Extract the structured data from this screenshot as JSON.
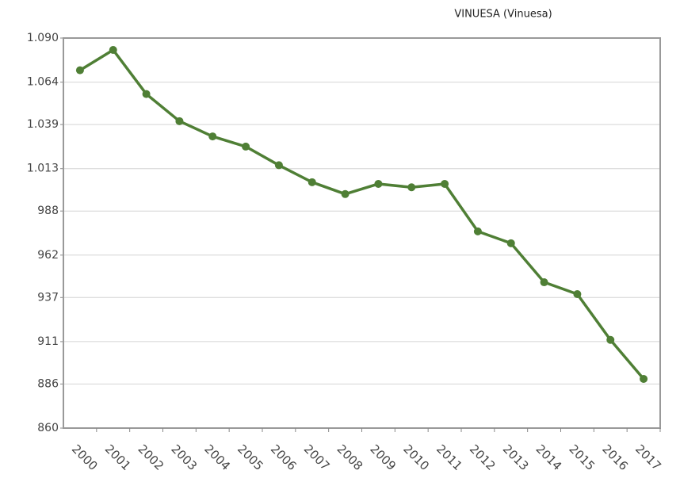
{
  "chart_data": {
    "type": "line",
    "title": "VINUESA (Vinuesa)",
    "categories": [
      "2000",
      "2001",
      "2002",
      "2003",
      "2004",
      "2005",
      "2006",
      "2007",
      "2008",
      "2009",
      "2010",
      "2011",
      "2012",
      "2013",
      "2014",
      "2015",
      "2016",
      "2017"
    ],
    "series": [
      {
        "name": "VINUESA",
        "color": "#4f7f35",
        "values": [
          1071,
          1083,
          1057,
          1041,
          1032,
          1026,
          1015,
          1005,
          998,
          1004,
          1002,
          1004,
          976,
          969,
          946,
          939,
          912,
          889
        ]
      }
    ],
    "ylim": [
      860,
      1090
    ],
    "yticks": [
      860,
      886,
      911,
      937,
      962,
      988,
      {
        "value": 1013,
        "label": "1.013"
      },
      {
        "value": 1039,
        "label": "1.039"
      },
      {
        "value": 1064,
        "label": "1.064"
      },
      {
        "value": 1090,
        "label": "1.090"
      }
    ],
    "grid": true
  }
}
